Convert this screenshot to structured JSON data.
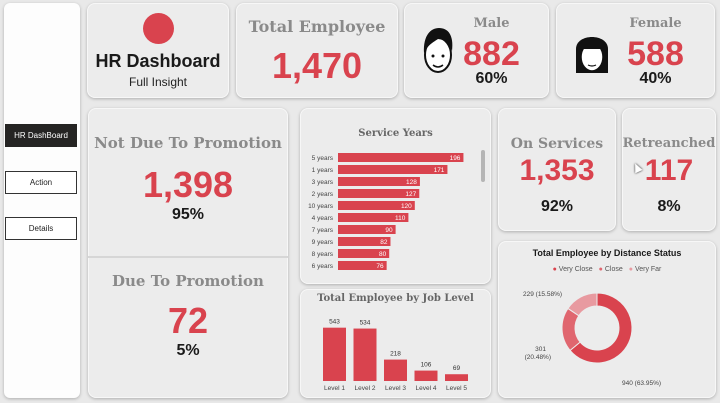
{
  "colors": {
    "accent": "#d9434e",
    "accent_light": "#e0666f",
    "accent_pale": "#e89aa0",
    "nav_active": "#252423"
  },
  "nav": {
    "items": [
      {
        "label": "HR DashBoard",
        "active": true
      },
      {
        "label": "Action",
        "active": false
      },
      {
        "label": "Details",
        "active": false
      }
    ]
  },
  "header": {
    "title": "HR Dashboard",
    "subtitle": "Full Insight"
  },
  "kpis": {
    "total_employee": {
      "label": "Total Employee",
      "value": "1,470"
    },
    "male": {
      "label": "Male",
      "value": "882",
      "pct": "60%"
    },
    "female": {
      "label": "Female",
      "value": "588",
      "pct": "40%"
    },
    "not_due": {
      "label": "Not Due To Promotion",
      "value": "1,398",
      "pct": "95%"
    },
    "due": {
      "label": "Due To Promotion",
      "value": "72",
      "pct": "5%"
    },
    "on_services": {
      "label": "On Services",
      "value": "1,353",
      "pct": "92%"
    },
    "retrenched": {
      "label": "Retreanched",
      "value": "117",
      "pct": "8%"
    }
  },
  "chart_data": [
    {
      "type": "bar",
      "orientation": "horizontal",
      "title": "Service Years",
      "categories": [
        "5 years",
        "1 years",
        "3 years",
        "2 years",
        "10 years",
        "4 years",
        "7 years",
        "9 years",
        "8 years",
        "6 years"
      ],
      "values": [
        196,
        171,
        128,
        127,
        120,
        110,
        90,
        82,
        80,
        76
      ],
      "xlim": [
        0,
        200
      ]
    },
    {
      "type": "bar",
      "title": "Total Employee by Job Level",
      "categories": [
        "Level 1",
        "Level 2",
        "Level 3",
        "Level 4",
        "Level 5"
      ],
      "values": [
        543,
        534,
        218,
        106,
        69
      ],
      "ylim": [
        0,
        560
      ]
    },
    {
      "type": "pie",
      "title": "Total Employee by Distance Status",
      "legend": [
        "Very Close",
        "Close",
        "Very Far"
      ],
      "slices": [
        {
          "name": "Very Close",
          "value": 940,
          "label": "940 (63.95%)"
        },
        {
          "name": "Close",
          "value": 301,
          "label": "301 (20.48%)"
        },
        {
          "name": "Very Far",
          "value": 229,
          "label": "229 (15.58%)"
        }
      ]
    }
  ]
}
